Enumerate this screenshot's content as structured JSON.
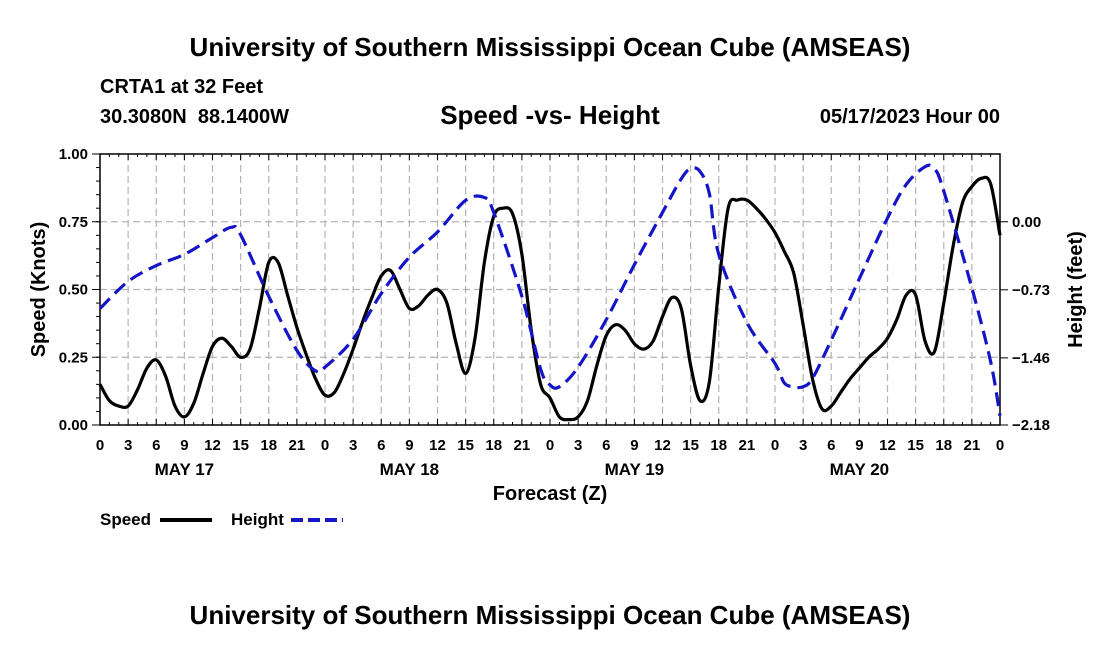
{
  "header": {
    "title": "University of Southern Mississippi Ocean Cube (AMSEAS)",
    "station": "CRTA1 at 32 Feet",
    "coords": "30.3080N  88.1400W",
    "subtitle": "Speed -vs- Height",
    "date": "05/17/2023 Hour 00"
  },
  "footer": {
    "title": "University of Southern Mississippi Ocean Cube (AMSEAS)"
  },
  "legend": {
    "speed_label": "Speed",
    "height_label": "Height"
  },
  "chart_data": {
    "type": "line",
    "title": "Speed -vs- Height",
    "xlabel": "Forecast (Z)",
    "ylabel": "Speed (Knots)",
    "y2label": "Height (feet)",
    "x_range_hours": [
      0,
      96
    ],
    "x_tick_step_hours": 3,
    "x_tick_labels": [
      "0",
      "3",
      "6",
      "9",
      "12",
      "15",
      "18",
      "21",
      "0",
      "3",
      "6",
      "9",
      "12",
      "15",
      "18",
      "21",
      "0",
      "3",
      "6",
      "9",
      "12",
      "15",
      "18",
      "21",
      "0",
      "3",
      "6",
      "9",
      "12",
      "15",
      "18",
      "21",
      "0"
    ],
    "day_labels": [
      {
        "label": "MAY 17",
        "hour": 9
      },
      {
        "label": "MAY 18",
        "hour": 33
      },
      {
        "label": "MAY 19",
        "hour": 57
      },
      {
        "label": "MAY 20",
        "hour": 81
      }
    ],
    "ylim": [
      0,
      1
    ],
    "y_ticks": [
      0,
      0.25,
      0.5,
      0.75,
      1
    ],
    "y_tick_labels": [
      "0.00",
      "0.25",
      "0.50",
      "0.75",
      "1.00"
    ],
    "y2_ticks": [
      -2.18,
      -1.46,
      -0.73,
      0.0
    ],
    "y2_tick_labels": [
      "−2.18",
      "−1.46",
      "−0.73",
      "0.00"
    ],
    "grid": true,
    "legend_position": "bottom-left",
    "series": [
      {
        "name": "Speed",
        "axis": "left",
        "color": "#000000",
        "dash": "solid",
        "points": [
          [
            0,
            0.15
          ],
          [
            1,
            0.09
          ],
          [
            2,
            0.07
          ],
          [
            3,
            0.07
          ],
          [
            4,
            0.13
          ],
          [
            5,
            0.21
          ],
          [
            6,
            0.24
          ],
          [
            7,
            0.18
          ],
          [
            8,
            0.07
          ],
          [
            9,
            0.03
          ],
          [
            10,
            0.08
          ],
          [
            11,
            0.19
          ],
          [
            12,
            0.29
          ],
          [
            13,
            0.32
          ],
          [
            14,
            0.29
          ],
          [
            15,
            0.25
          ],
          [
            16,
            0.28
          ],
          [
            17,
            0.43
          ],
          [
            18,
            0.6
          ],
          [
            19,
            0.6
          ],
          [
            20,
            0.48
          ],
          [
            21,
            0.36
          ],
          [
            22,
            0.26
          ],
          [
            23,
            0.17
          ],
          [
            24,
            0.11
          ],
          [
            25,
            0.12
          ],
          [
            26,
            0.19
          ],
          [
            27,
            0.28
          ],
          [
            28,
            0.38
          ],
          [
            29,
            0.47
          ],
          [
            30,
            0.55
          ],
          [
            31,
            0.57
          ],
          [
            32,
            0.5
          ],
          [
            33,
            0.43
          ],
          [
            34,
            0.44
          ],
          [
            35,
            0.48
          ],
          [
            36,
            0.5
          ],
          [
            37,
            0.45
          ],
          [
            38,
            0.3
          ],
          [
            39,
            0.19
          ],
          [
            40,
            0.32
          ],
          [
            41,
            0.6
          ],
          [
            42,
            0.77
          ],
          [
            43,
            0.8
          ],
          [
            44,
            0.78
          ],
          [
            45,
            0.63
          ],
          [
            46,
            0.35
          ],
          [
            47,
            0.15
          ],
          [
            48,
            0.1
          ],
          [
            49,
            0.03
          ],
          [
            50,
            0.02
          ],
          [
            51,
            0.03
          ],
          [
            52,
            0.09
          ],
          [
            53,
            0.22
          ],
          [
            54,
            0.33
          ],
          [
            55,
            0.37
          ],
          [
            56,
            0.35
          ],
          [
            57,
            0.3
          ],
          [
            58,
            0.28
          ],
          [
            59,
            0.31
          ],
          [
            60,
            0.4
          ],
          [
            61,
            0.47
          ],
          [
            62,
            0.43
          ],
          [
            63,
            0.22
          ],
          [
            64,
            0.09
          ],
          [
            65,
            0.16
          ],
          [
            66,
            0.51
          ],
          [
            67,
            0.8
          ],
          [
            68,
            0.83
          ],
          [
            69,
            0.83
          ],
          [
            70,
            0.8
          ],
          [
            71,
            0.76
          ],
          [
            72,
            0.71
          ],
          [
            73,
            0.64
          ],
          [
            74,
            0.56
          ],
          [
            75,
            0.37
          ],
          [
            76,
            0.17
          ],
          [
            77,
            0.06
          ],
          [
            78,
            0.07
          ],
          [
            79,
            0.12
          ],
          [
            80,
            0.17
          ],
          [
            81,
            0.21
          ],
          [
            82,
            0.25
          ],
          [
            83,
            0.28
          ],
          [
            84,
            0.32
          ],
          [
            85,
            0.39
          ],
          [
            86,
            0.48
          ],
          [
            87,
            0.48
          ],
          [
            88,
            0.31
          ],
          [
            89,
            0.27
          ],
          [
            90,
            0.45
          ],
          [
            91,
            0.66
          ],
          [
            92,
            0.82
          ],
          [
            93,
            0.88
          ],
          [
            94,
            0.91
          ],
          [
            95,
            0.89
          ],
          [
            96,
            0.7
          ]
        ]
      },
      {
        "name": "Height",
        "axis": "right",
        "color": "#1515c8",
        "dash": "dashed",
        "points": [
          [
            0,
            -0.93
          ],
          [
            3,
            -0.64
          ],
          [
            6,
            -0.47
          ],
          [
            9,
            -0.35
          ],
          [
            12,
            -0.17
          ],
          [
            14,
            -0.06
          ],
          [
            15,
            -0.14
          ],
          [
            18,
            -0.8
          ],
          [
            21,
            -1.38
          ],
          [
            23,
            -1.6
          ],
          [
            24,
            -1.56
          ],
          [
            27,
            -1.26
          ],
          [
            30,
            -0.77
          ],
          [
            33,
            -0.38
          ],
          [
            36,
            -0.11
          ],
          [
            39,
            0.23
          ],
          [
            41,
            0.26
          ],
          [
            42,
            0.1
          ],
          [
            45,
            -0.8
          ],
          [
            47,
            -1.58
          ],
          [
            48,
            -1.75
          ],
          [
            49,
            -1.77
          ],
          [
            51,
            -1.56
          ],
          [
            54,
            -1.05
          ],
          [
            57,
            -0.46
          ],
          [
            60,
            0.1
          ],
          [
            62,
            0.46
          ],
          [
            63,
            0.57
          ],
          [
            64,
            0.54
          ],
          [
            65,
            0.3
          ],
          [
            66,
            -0.35
          ],
          [
            69,
            -1.08
          ],
          [
            72,
            -1.52
          ],
          [
            73,
            -1.73
          ],
          [
            74,
            -1.77
          ],
          [
            75,
            -1.77
          ],
          [
            76,
            -1.68
          ],
          [
            78,
            -1.27
          ],
          [
            81,
            -0.61
          ],
          [
            84,
            0.04
          ],
          [
            86,
            0.4
          ],
          [
            88,
            0.59
          ],
          [
            89,
            0.57
          ],
          [
            90,
            0.33
          ],
          [
            93,
            -0.71
          ],
          [
            95,
            -1.5
          ],
          [
            96,
            -2.08
          ]
        ]
      }
    ]
  }
}
